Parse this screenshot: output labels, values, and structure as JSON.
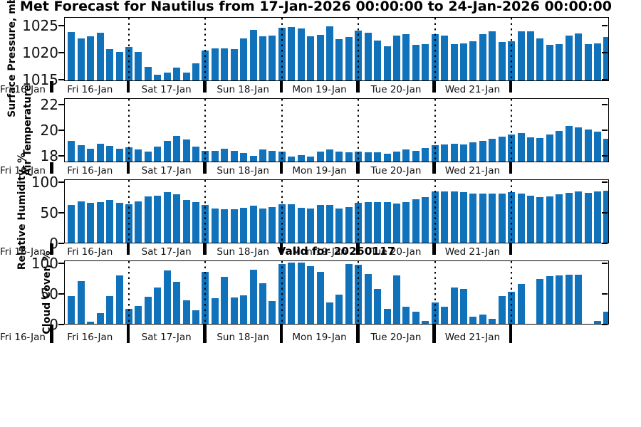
{
  "figure": {
    "title": "Met Forecast for Nautilus from 17-Jan-2026 00:00:00 to 24-Jan-2026 00:00:00",
    "valid_label": "Valid for 20260117",
    "bar_color": "#1072ba",
    "x_far_left_label": "Fri 16-Jan",
    "day_labels": [
      "Fri 16-Jan",
      "Sat 17-Jan",
      "Sun 18-Jan",
      "Mon 19-Jan",
      "Tue 20-Jan",
      "Wed 21-Jan"
    ]
  },
  "chart_data": [
    {
      "type": "bar",
      "title": "Met Forecast for Nautilus from 17-Jan-2026 00:00:00 to 24-Jan-2026 00:00:00",
      "ylabel": "Surface Pressure, mb",
      "xlabel": "",
      "yticks": [
        1015,
        1020,
        1025
      ],
      "ylim": [
        1014.8,
        1026.6
      ],
      "x_categories": [
        "Fri 16-Jan",
        "Sat 17-Jan",
        "Sun 18-Jan",
        "Mon 19-Jan",
        "Tue 20-Jan",
        "Wed 21-Jan"
      ],
      "x_note": "3-hourly bars starting Fri 16-Jan 06:00, dotted gridlines at midnight day boundaries",
      "legend": "none",
      "grid": "vertical-dotted-day-lines",
      "values": [
        1023.7,
        1022.5,
        1022.9,
        1023.6,
        1020.6,
        1020.0,
        1021.0,
        1020.0,
        1017.3,
        1015.9,
        1016.3,
        1017.2,
        1016.3,
        1018.0,
        1020.3,
        1020.7,
        1020.7,
        1020.6,
        1022.6,
        1024.1,
        1022.9,
        1023.1,
        1024.5,
        1024.6,
        1024.4,
        1023.0,
        1023.2,
        1024.8,
        1022.4,
        1022.8,
        1024.0,
        1023.6,
        1022.2,
        1021.1,
        1023.1,
        1023.3,
        1021.3,
        1021.5,
        1023.3,
        1023.1,
        1021.5,
        1021.6,
        1022.0,
        1023.3,
        1023.9,
        1021.9,
        1022.0,
        1023.9,
        1023.9,
        1022.5,
        1021.3,
        1021.5,
        1023.1,
        1023.5,
        1021.5,
        1021.6,
        1022.8
      ]
    },
    {
      "type": "bar",
      "title": "",
      "ylabel": "Air Temperature",
      "xlabel": "",
      "yticks": [
        18,
        20,
        22
      ],
      "ylim": [
        17.5,
        22.5
      ],
      "x_categories": [
        "Fri 16-Jan",
        "Sat 17-Jan",
        "Sun 18-Jan",
        "Mon 19-Jan",
        "Tue 20-Jan",
        "Wed 21-Jan"
      ],
      "legend": "none",
      "grid": "vertical-dotted-day-lines",
      "values": [
        19.1,
        18.8,
        18.5,
        18.9,
        18.75,
        18.5,
        18.6,
        18.45,
        18.3,
        18.65,
        19.1,
        19.5,
        19.2,
        18.65,
        18.35,
        18.35,
        18.5,
        18.35,
        18.15,
        17.95,
        18.45,
        18.35,
        18.3,
        17.9,
        18.0,
        17.9,
        18.3,
        18.45,
        18.3,
        18.25,
        18.3,
        18.25,
        18.2,
        18.1,
        18.3,
        18.45,
        18.35,
        18.55,
        18.8,
        18.85,
        18.9,
        18.85,
        19.0,
        19.1,
        19.3,
        19.45,
        19.6,
        19.7,
        19.4,
        19.35,
        19.6,
        19.9,
        20.3,
        20.15,
        20.0,
        19.85,
        19.3
      ]
    },
    {
      "type": "bar",
      "title": "",
      "ylabel": "Relative Humidity, %",
      "xlabel": "",
      "yticks": [
        0,
        50,
        100
      ],
      "ylim": [
        0,
        105
      ],
      "x_categories": [
        "Fri 16-Jan",
        "Sat 17-Jan",
        "Sun 18-Jan",
        "Mon 19-Jan",
        "Tue 20-Jan",
        "Wed 21-Jan"
      ],
      "legend": "none",
      "grid": "vertical-dotted-day-lines",
      "values": [
        62,
        68,
        65,
        66,
        70,
        65,
        63,
        68,
        76,
        77,
        83,
        79,
        70,
        67,
        62,
        56,
        55,
        55,
        57,
        61,
        56,
        58,
        63,
        63,
        57,
        56,
        62,
        62,
        56,
        58,
        65,
        66,
        67,
        66,
        64,
        66,
        71,
        75,
        84,
        84,
        84,
        83,
        81,
        80,
        80,
        81,
        83,
        81,
        77,
        75,
        76,
        79,
        82,
        84,
        82,
        84,
        85
      ]
    },
    {
      "type": "bar",
      "title": "Valid for 20260117",
      "ylabel": "Cloud Cover, %",
      "xlabel": "",
      "yticks": [
        0,
        50,
        100
      ],
      "ylim": [
        0,
        105
      ],
      "x_categories": [
        "Fri 16-Jan",
        "Sat 17-Jan",
        "Sun 18-Jan",
        "Mon 19-Jan",
        "Tue 20-Jan",
        "Wed 21-Jan"
      ],
      "legend": "none",
      "grid": "vertical-dotted-day-lines",
      "values": [
        45,
        70,
        3,
        18,
        46,
        79,
        24,
        29,
        44,
        60,
        88,
        69,
        38,
        22,
        85,
        42,
        77,
        43,
        47,
        89,
        66,
        37,
        98,
        100,
        100,
        95,
        85,
        35,
        48,
        98,
        97,
        82,
        57,
        25,
        79,
        28,
        20,
        5,
        35,
        28,
        60,
        57,
        12,
        15,
        8,
        45,
        52,
        65,
        0,
        73,
        78,
        79,
        80,
        80,
        0,
        5,
        20
      ]
    }
  ]
}
